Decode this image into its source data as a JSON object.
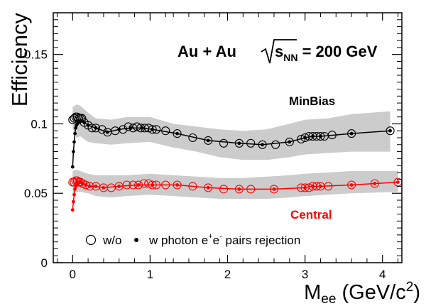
{
  "chart_data": {
    "type": "scatter",
    "title": "",
    "xlabel": {
      "main": "M",
      "sub": "ee",
      "unit_open": " (GeV/c",
      "unit_sup": "2",
      "unit_close": ")"
    },
    "ylabel": "Efficiency",
    "xlim": [
      -0.25,
      4.25
    ],
    "ylim": [
      0,
      0.18
    ],
    "x_ticks": [
      0,
      1,
      2,
      3,
      4
    ],
    "x_tick_labels": [
      "0",
      "1",
      "2",
      "3",
      "4"
    ],
    "y_ticks": [
      0,
      0.05,
      0.1,
      0.15
    ],
    "y_tick_labels": [
      "0",
      "0.05",
      "0.1",
      "0.15"
    ],
    "grid": false,
    "annotations": {
      "system": "Au + Au",
      "energy_prefix": "s",
      "energy_sub": "NN",
      "energy_value": " = 200 GeV",
      "minbias_label": "MinBias",
      "central_label": "Central"
    },
    "legend": {
      "placement": "bottom-left",
      "open_label": "w/o",
      "closed_prefix": "w photon e",
      "closed_sup1": "+",
      "closed_mid": "e",
      "closed_sup2": "-",
      "closed_suffix": " pairs rejection"
    },
    "series": [
      {
        "name": "MinBias",
        "color": "#000000",
        "band_fill": "#cccccc",
        "band": {
          "x": [
            0.0,
            0.05,
            0.1,
            0.2,
            0.3,
            0.5,
            0.7,
            1.0,
            1.3,
            1.6,
            1.9,
            2.2,
            2.5,
            2.8,
            3.0,
            3.3,
            3.6,
            4.1
          ],
          "lo": [
            0.097,
            0.09,
            0.091,
            0.087,
            0.086,
            0.085,
            0.086,
            0.087,
            0.083,
            0.08,
            0.076,
            0.074,
            0.074,
            0.076,
            0.078,
            0.079,
            0.08,
            0.08
          ],
          "hi": [
            0.112,
            0.114,
            0.113,
            0.108,
            0.104,
            0.103,
            0.105,
            0.105,
            0.1,
            0.098,
            0.096,
            0.095,
            0.096,
            0.1,
            0.103,
            0.104,
            0.107,
            0.109
          ]
        },
        "open_points": {
          "x": [
            0.0,
            0.02,
            0.04,
            0.06,
            0.08,
            0.1,
            0.12,
            0.15,
            0.2,
            0.25,
            0.3,
            0.38,
            0.45,
            0.55,
            0.65,
            0.72,
            0.78,
            0.83,
            0.88,
            0.93,
            0.98,
            1.03,
            1.08,
            1.2,
            1.35,
            1.55,
            1.75,
            1.95,
            2.15,
            2.3,
            2.45,
            2.62,
            2.8,
            2.95,
            3.0,
            3.05,
            3.1,
            3.15,
            3.2,
            3.25,
            3.35,
            3.6,
            4.1
          ],
          "y": [
            0.103,
            0.104,
            0.105,
            0.105,
            0.104,
            0.104,
            0.104,
            0.101,
            0.099,
            0.097,
            0.097,
            0.096,
            0.094,
            0.095,
            0.096,
            0.098,
            0.097,
            0.098,
            0.097,
            0.097,
            0.097,
            0.096,
            0.096,
            0.095,
            0.093,
            0.09,
            0.088,
            0.086,
            0.086,
            0.086,
            0.085,
            0.085,
            0.087,
            0.089,
            0.09,
            0.091,
            0.091,
            0.091,
            0.091,
            0.091,
            0.092,
            0.093,
            0.095
          ]
        },
        "closed_points": {
          "x": [
            0.0,
            0.01,
            0.02,
            0.03,
            0.04,
            0.05,
            0.06,
            0.08,
            0.1,
            0.12,
            0.15,
            0.2,
            0.3,
            0.45,
            0.6,
            0.75,
            0.9,
            1.03,
            1.35,
            1.75,
            2.15,
            2.45,
            2.8,
            3.0,
            3.1,
            3.2,
            3.6,
            4.1
          ],
          "y": [
            0.069,
            0.08,
            0.087,
            0.093,
            0.097,
            0.099,
            0.1,
            0.101,
            0.102,
            0.102,
            0.101,
            0.099,
            0.097,
            0.094,
            0.096,
            0.097,
            0.097,
            0.096,
            0.093,
            0.088,
            0.086,
            0.085,
            0.087,
            0.09,
            0.091,
            0.091,
            0.093,
            0.095
          ]
        }
      },
      {
        "name": "Central",
        "color": "#ff0000",
        "band_fill": "#cccccc",
        "band": {
          "x": [
            0.0,
            0.05,
            0.1,
            0.2,
            0.3,
            0.5,
            0.7,
            1.0,
            1.3,
            1.6,
            1.9,
            2.2,
            2.5,
            2.8,
            3.0,
            3.3,
            3.6,
            4.2
          ],
          "lo": [
            0.05,
            0.051,
            0.051,
            0.05,
            0.048,
            0.047,
            0.048,
            0.049,
            0.048,
            0.047,
            0.046,
            0.046,
            0.046,
            0.047,
            0.048,
            0.049,
            0.05,
            0.051
          ],
          "hi": [
            0.066,
            0.067,
            0.066,
            0.064,
            0.063,
            0.063,
            0.063,
            0.064,
            0.063,
            0.062,
            0.061,
            0.061,
            0.062,
            0.063,
            0.064,
            0.065,
            0.066,
            0.066
          ]
        },
        "open_points": {
          "x": [
            0.0,
            0.02,
            0.04,
            0.06,
            0.08,
            0.1,
            0.13,
            0.17,
            0.22,
            0.3,
            0.4,
            0.5,
            0.6,
            0.7,
            0.78,
            0.85,
            0.92,
            0.98,
            1.03,
            1.08,
            1.2,
            1.35,
            1.55,
            1.75,
            1.95,
            2.15,
            2.3,
            2.6,
            2.95,
            3.0,
            3.05,
            3.1,
            3.15,
            3.2,
            3.3,
            3.6,
            3.9,
            4.2
          ],
          "y": [
            0.058,
            0.058,
            0.059,
            0.059,
            0.058,
            0.058,
            0.057,
            0.056,
            0.055,
            0.055,
            0.054,
            0.054,
            0.055,
            0.056,
            0.056,
            0.056,
            0.057,
            0.057,
            0.056,
            0.056,
            0.056,
            0.056,
            0.055,
            0.054,
            0.053,
            0.053,
            0.053,
            0.053,
            0.054,
            0.054,
            0.054,
            0.055,
            0.055,
            0.055,
            0.055,
            0.056,
            0.057,
            0.058
          ]
        },
        "closed_points": {
          "x": [
            0.0,
            0.01,
            0.02,
            0.03,
            0.04,
            0.05,
            0.06,
            0.08,
            0.1,
            0.13,
            0.17,
            0.22,
            0.3,
            0.4,
            0.6,
            0.85,
            1.03,
            1.35,
            1.75,
            2.15,
            2.6,
            3.0,
            3.1,
            3.2,
            3.6,
            3.9,
            4.2
          ],
          "y": [
            0.038,
            0.044,
            0.049,
            0.053,
            0.055,
            0.057,
            0.058,
            0.058,
            0.058,
            0.057,
            0.056,
            0.055,
            0.055,
            0.054,
            0.055,
            0.056,
            0.056,
            0.056,
            0.054,
            0.053,
            0.053,
            0.054,
            0.055,
            0.055,
            0.056,
            0.057,
            0.058
          ]
        }
      }
    ]
  }
}
